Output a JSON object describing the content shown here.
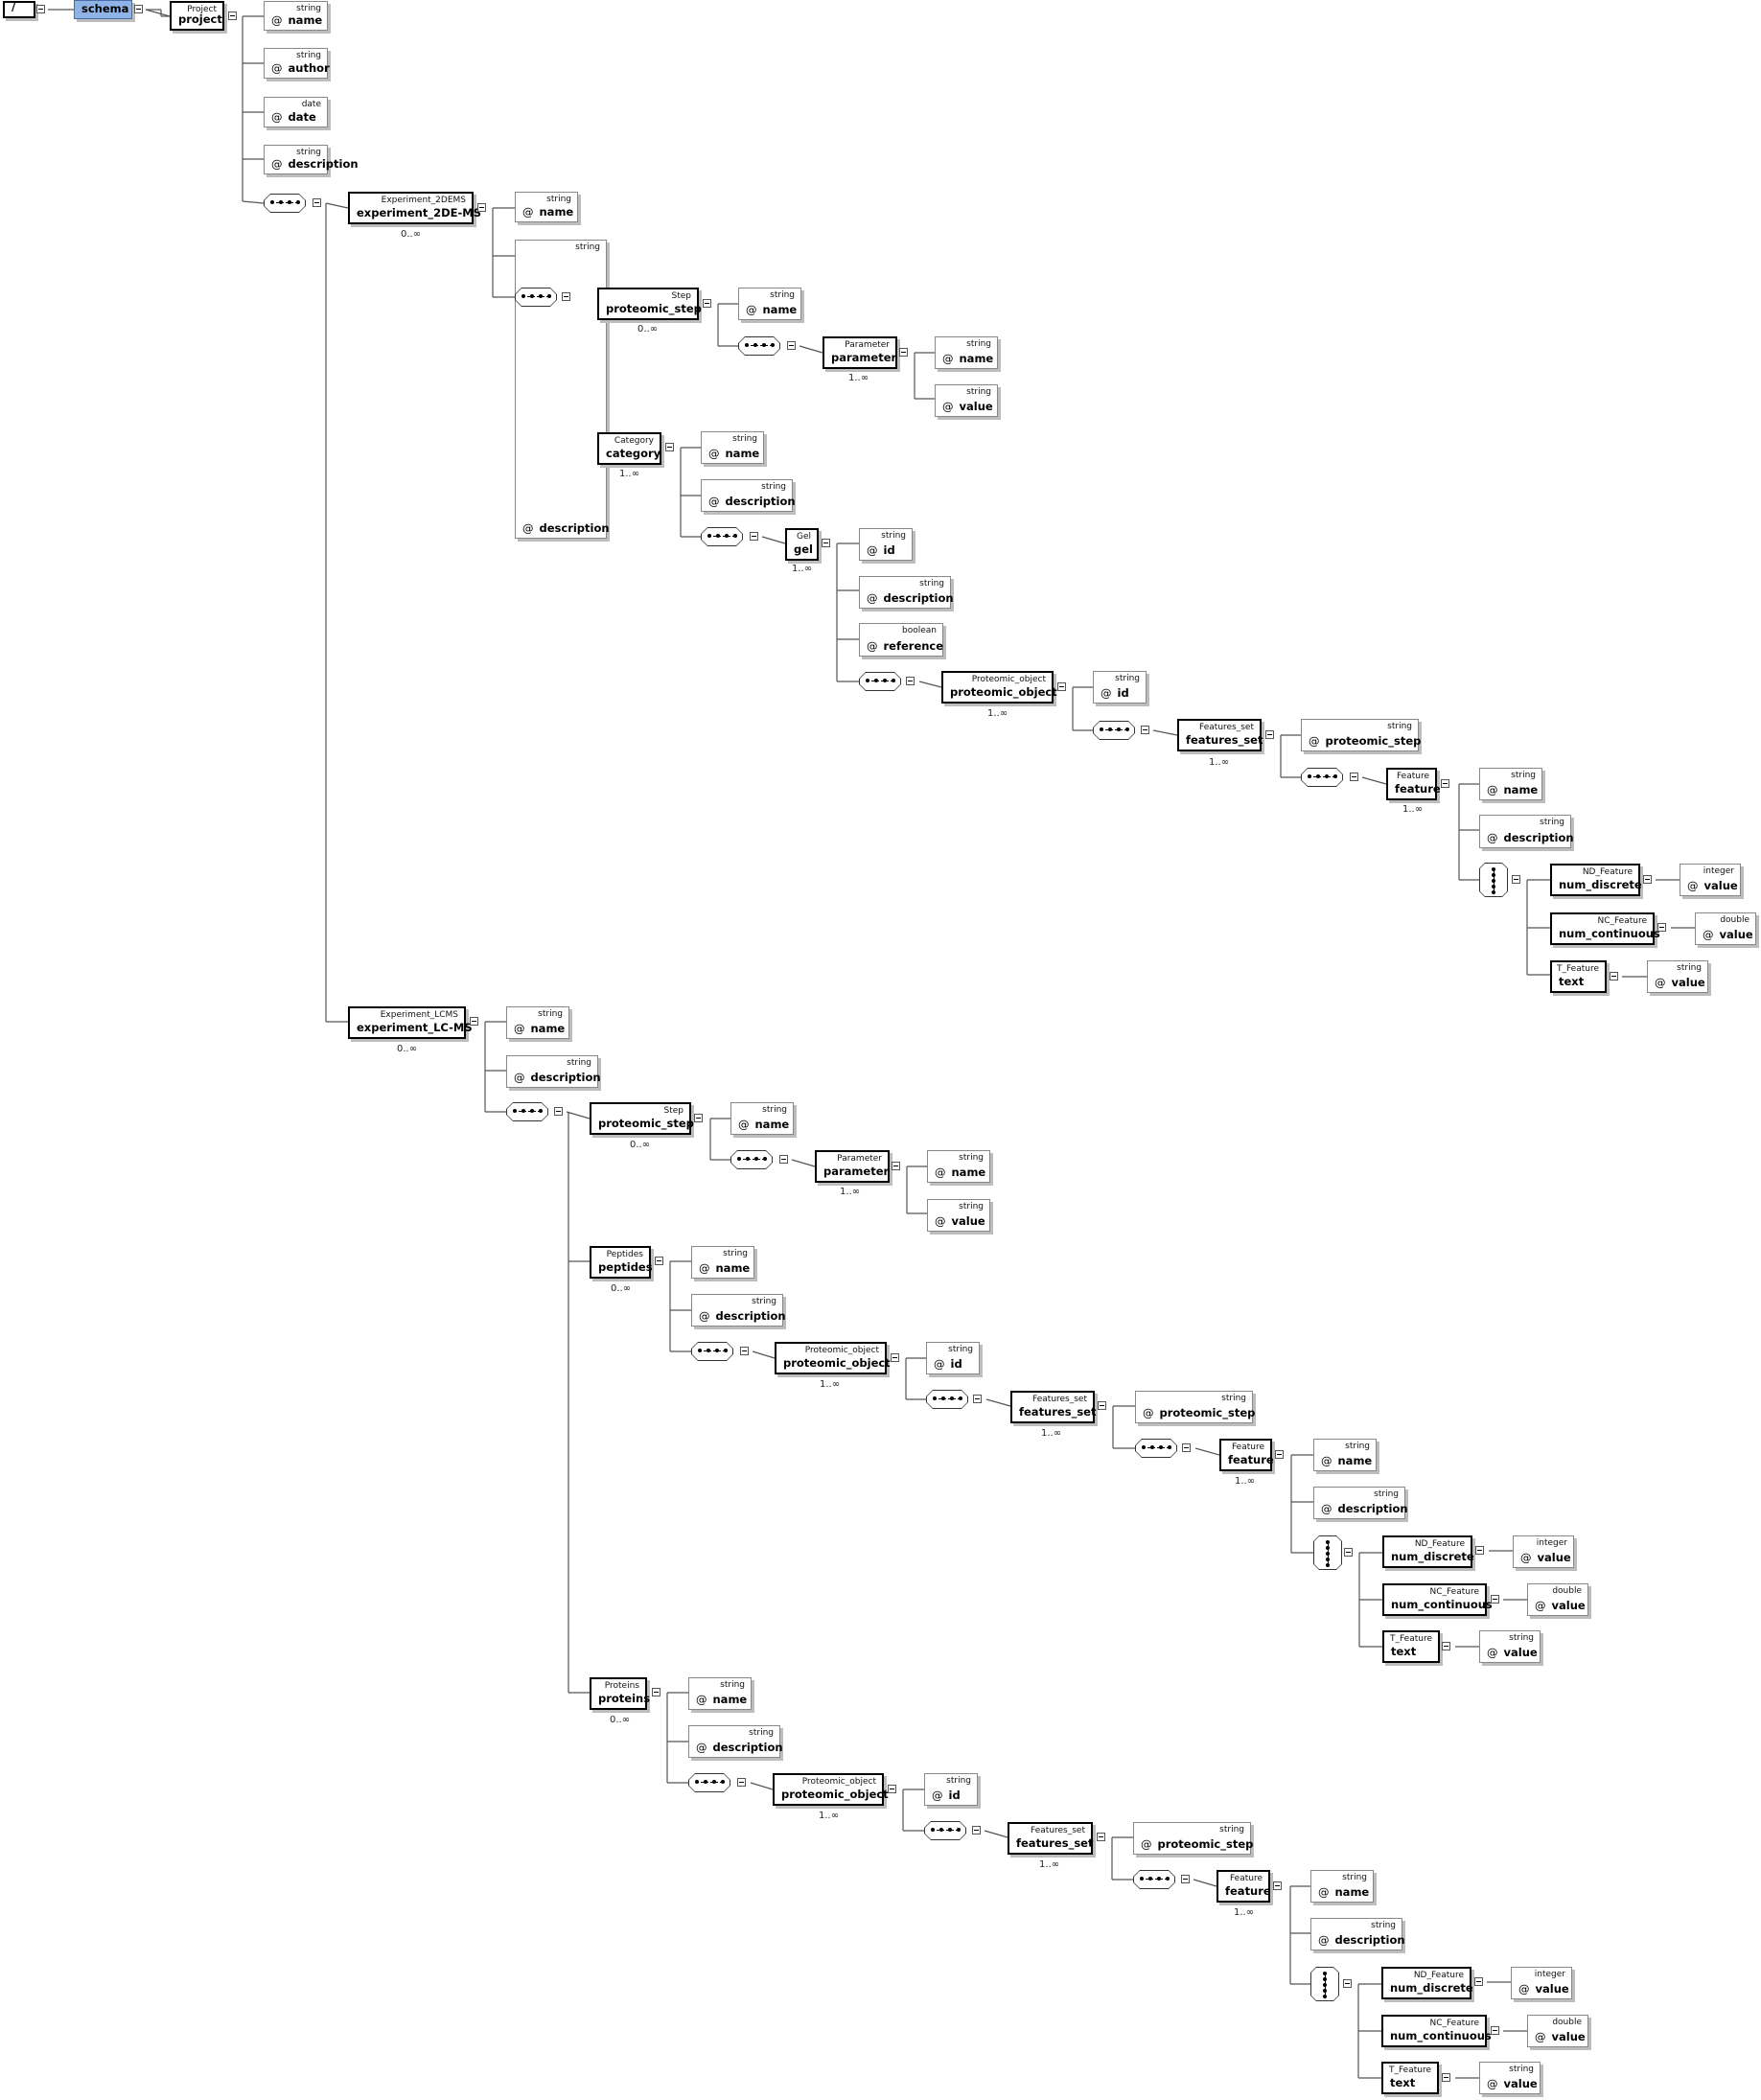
{
  "root": {
    "separator": "/",
    "schema_label": "schema",
    "project": {
      "type": "Project",
      "name": "project"
    }
  },
  "project_attributes": [
    {
      "type": "string",
      "name": "name"
    },
    {
      "type": "string",
      "name": "author"
    },
    {
      "type": "date",
      "name": "date"
    },
    {
      "type": "string",
      "name": "description"
    }
  ],
  "attribute_marker": "@",
  "cardinality": {
    "zero_many": "0..∞",
    "one_many": "1..∞"
  },
  "exp2d": {
    "type": "Experiment_2DEMS",
    "name": "experiment_2DE-MS",
    "attrs": [
      {
        "type": "string",
        "name": "name"
      },
      {
        "type": "string",
        "name": "description"
      }
    ],
    "step": {
      "type": "Step",
      "name": "proteomic_step",
      "attrs": [
        {
          "type": "string",
          "name": "name"
        }
      ],
      "parameter": {
        "type": "Parameter",
        "name": "parameter",
        "attrs": [
          {
            "type": "string",
            "name": "name"
          },
          {
            "type": "string",
            "name": "value"
          }
        ]
      }
    },
    "category": {
      "type": "Category",
      "name": "category",
      "attrs": [
        {
          "type": "string",
          "name": "name"
        },
        {
          "type": "string",
          "name": "description"
        }
      ],
      "gel": {
        "type": "Gel",
        "name": "gel",
        "attrs": [
          {
            "type": "string",
            "name": "id"
          },
          {
            "type": "string",
            "name": "description"
          },
          {
            "type": "boolean",
            "name": "reference"
          }
        ],
        "pobj": {
          "type": "Proteomic_object",
          "name": "proteomic_object",
          "attrs": [
            {
              "type": "string",
              "name": "id"
            }
          ],
          "fset": {
            "type": "Features_set",
            "name": "features_set",
            "attrs": [
              {
                "type": "string",
                "name": "proteomic_step"
              }
            ],
            "feature": {
              "type": "Feature",
              "name": "feature",
              "attrs": [
                {
                  "type": "string",
                  "name": "name"
                },
                {
                  "type": "string",
                  "name": "description"
                }
              ],
              "choices": [
                {
                  "type": "ND_Feature",
                  "name": "num_discrete",
                  "attr_type": "integer",
                  "attr_name": "value"
                },
                {
                  "type": "NC_Feature",
                  "name": "num_continuous",
                  "attr_type": "double",
                  "attr_name": "value"
                },
                {
                  "type": "T_Feature",
                  "name": "text",
                  "attr_type": "string",
                  "attr_name": "value"
                }
              ]
            }
          }
        }
      }
    }
  },
  "explc": {
    "type": "Experiment_LCMS",
    "name": "experiment_LC-MS",
    "attrs": [
      {
        "type": "string",
        "name": "name"
      },
      {
        "type": "string",
        "name": "description"
      }
    ],
    "step": {
      "type": "Step",
      "name": "proteomic_step",
      "attrs": [
        {
          "type": "string",
          "name": "name"
        }
      ],
      "parameter": {
        "type": "Parameter",
        "name": "parameter",
        "attrs": [
          {
            "type": "string",
            "name": "name"
          },
          {
            "type": "string",
            "name": "value"
          }
        ]
      }
    },
    "peptides": {
      "type": "Peptides",
      "name": "peptides",
      "attrs": [
        {
          "type": "string",
          "name": "name"
        },
        {
          "type": "string",
          "name": "description"
        }
      ],
      "pobj": {
        "type": "Proteomic_object",
        "name": "proteomic_object",
        "attrs": [
          {
            "type": "string",
            "name": "id"
          }
        ],
        "fset": {
          "type": "Features_set",
          "name": "features_set",
          "attrs": [
            {
              "type": "string",
              "name": "proteomic_step"
            }
          ],
          "feature": {
            "type": "Feature",
            "name": "feature",
            "attrs": [
              {
                "type": "string",
                "name": "name"
              },
              {
                "type": "string",
                "name": "description"
              }
            ],
            "choices": [
              {
                "type": "ND_Feature",
                "name": "num_discrete",
                "attr_type": "integer",
                "attr_name": "value"
              },
              {
                "type": "NC_Feature",
                "name": "num_continuous",
                "attr_type": "double",
                "attr_name": "value"
              },
              {
                "type": "T_Feature",
                "name": "text",
                "attr_type": "string",
                "attr_name": "value"
              }
            ]
          }
        }
      }
    },
    "proteins": {
      "type": "Proteins",
      "name": "proteins",
      "attrs": [
        {
          "type": "string",
          "name": "name"
        },
        {
          "type": "string",
          "name": "description"
        }
      ],
      "pobj": {
        "type": "Proteomic_object",
        "name": "proteomic_object",
        "attrs": [
          {
            "type": "string",
            "name": "id"
          }
        ],
        "fset": {
          "type": "Features_set",
          "name": "features_set",
          "attrs": [
            {
              "type": "string",
              "name": "proteomic_step"
            }
          ],
          "feature": {
            "type": "Feature",
            "name": "feature",
            "attrs": [
              {
                "type": "string",
                "name": "name"
              },
              {
                "type": "string",
                "name": "description"
              }
            ],
            "choices": [
              {
                "type": "ND_Feature",
                "name": "num_discrete",
                "attr_type": "integer",
                "attr_name": "value"
              },
              {
                "type": "NC_Feature",
                "name": "num_continuous",
                "attr_type": "double",
                "attr_name": "value"
              },
              {
                "type": "T_Feature",
                "name": "text",
                "attr_type": "string",
                "attr_name": "value"
              }
            ]
          }
        }
      }
    }
  }
}
